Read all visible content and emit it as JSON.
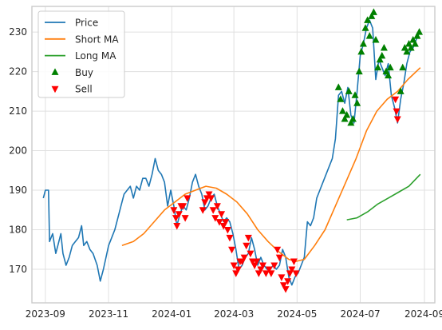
{
  "chart_data": {
    "type": "line",
    "x_ticks": [
      "2023-09",
      "2023-11",
      "2024-01",
      "2024-03",
      "2024-05",
      "2024-07",
      "2024-09"
    ],
    "y_ticks": [
      170,
      180,
      190,
      200,
      210,
      220,
      230
    ],
    "xlim": [
      "2023-08-19",
      "2024-09-11"
    ],
    "ylim": [
      161.5,
      236.5
    ],
    "grid": true,
    "legend": {
      "placement": "top-left"
    },
    "series": [
      {
        "name": "Price",
        "color": "#1f77b4",
        "points": [
          [
            "2023-08-30",
            188
          ],
          [
            "2023-09-01",
            190
          ],
          [
            "2023-09-04",
            190
          ],
          [
            "2023-09-05",
            177
          ],
          [
            "2023-09-08",
            179
          ],
          [
            "2023-09-11",
            174
          ],
          [
            "2023-09-13",
            176
          ],
          [
            "2023-09-16",
            179
          ],
          [
            "2023-09-18",
            174
          ],
          [
            "2023-09-21",
            171
          ],
          [
            "2023-09-24",
            173
          ],
          [
            "2023-09-27",
            176
          ],
          [
            "2023-09-30",
            177
          ],
          [
            "2023-10-03",
            178
          ],
          [
            "2023-10-06",
            181
          ],
          [
            "2023-10-08",
            176
          ],
          [
            "2023-10-11",
            177
          ],
          [
            "2023-10-14",
            175
          ],
          [
            "2023-10-17",
            174
          ],
          [
            "2023-10-21",
            171
          ],
          [
            "2023-10-24",
            167
          ],
          [
            "2023-10-27",
            170
          ],
          [
            "2023-11-01",
            176
          ],
          [
            "2023-11-04",
            178
          ],
          [
            "2023-11-07",
            180
          ],
          [
            "2023-11-10",
            183
          ],
          [
            "2023-11-13",
            186
          ],
          [
            "2023-11-16",
            189
          ],
          [
            "2023-11-19",
            190
          ],
          [
            "2023-11-22",
            191
          ],
          [
            "2023-11-25",
            188
          ],
          [
            "2023-11-28",
            191
          ],
          [
            "2023-12-01",
            190
          ],
          [
            "2023-12-04",
            193
          ],
          [
            "2023-12-07",
            193
          ],
          [
            "2023-12-10",
            191
          ],
          [
            "2023-12-13",
            194
          ],
          [
            "2023-12-16",
            198
          ],
          [
            "2023-12-19",
            195
          ],
          [
            "2023-12-22",
            194
          ],
          [
            "2023-12-25",
            192
          ],
          [
            "2023-12-28",
            186
          ],
          [
            "2023-12-31",
            190
          ],
          [
            "2024-01-03",
            186
          ],
          [
            "2024-01-06",
            181
          ],
          [
            "2024-01-09",
            184
          ],
          [
            "2024-01-12",
            186
          ],
          [
            "2024-01-15",
            185
          ],
          [
            "2024-01-18",
            188
          ],
          [
            "2024-01-21",
            192
          ],
          [
            "2024-01-24",
            194
          ],
          [
            "2024-01-27",
            191
          ],
          [
            "2024-01-30",
            189
          ],
          [
            "2024-02-02",
            185
          ],
          [
            "2024-02-05",
            186
          ],
          [
            "2024-02-08",
            188
          ],
          [
            "2024-02-11",
            189
          ],
          [
            "2024-02-14",
            186
          ],
          [
            "2024-02-17",
            184
          ],
          [
            "2024-02-20",
            182
          ],
          [
            "2024-02-23",
            183
          ],
          [
            "2024-02-26",
            182
          ],
          [
            "2024-02-29",
            179
          ],
          [
            "2024-03-03",
            175
          ],
          [
            "2024-03-06",
            170
          ],
          [
            "2024-03-09",
            171
          ],
          [
            "2024-03-12",
            173
          ],
          [
            "2024-03-15",
            174
          ],
          [
            "2024-03-18",
            178
          ],
          [
            "2024-03-21",
            175
          ],
          [
            "2024-03-24",
            171
          ],
          [
            "2024-03-27",
            173
          ],
          [
            "2024-03-30",
            171
          ],
          [
            "2024-04-02",
            170
          ],
          [
            "2024-04-05",
            170
          ],
          [
            "2024-04-08",
            171
          ],
          [
            "2024-04-11",
            170
          ],
          [
            "2024-04-14",
            171
          ],
          [
            "2024-04-17",
            175
          ],
          [
            "2024-04-20",
            173
          ],
          [
            "2024-04-23",
            168
          ],
          [
            "2024-04-26",
            166
          ],
          [
            "2024-04-29",
            168
          ],
          [
            "2024-05-02",
            169
          ],
          [
            "2024-05-05",
            171
          ],
          [
            "2024-05-08",
            173
          ],
          [
            "2024-05-11",
            182
          ],
          [
            "2024-05-14",
            181
          ],
          [
            "2024-05-17",
            183
          ],
          [
            "2024-05-20",
            188
          ],
          [
            "2024-05-23",
            190
          ],
          [
            "2024-05-26",
            192
          ],
          [
            "2024-05-29",
            194
          ],
          [
            "2024-06-01",
            196
          ],
          [
            "2024-06-04",
            198
          ],
          [
            "2024-06-07",
            203
          ],
          [
            "2024-06-10",
            214
          ],
          [
            "2024-06-13",
            215
          ],
          [
            "2024-06-16",
            212
          ],
          [
            "2024-06-19",
            216
          ],
          [
            "2024-06-22",
            209
          ],
          [
            "2024-06-25",
            207
          ],
          [
            "2024-06-28",
            215
          ],
          [
            "2024-07-01",
            224
          ],
          [
            "2024-07-04",
            227
          ],
          [
            "2024-07-07",
            231
          ],
          [
            "2024-07-10",
            233
          ],
          [
            "2024-07-13",
            231
          ],
          [
            "2024-07-16",
            218
          ],
          [
            "2024-07-19",
            223
          ],
          [
            "2024-07-22",
            221
          ],
          [
            "2024-07-25",
            219
          ],
          [
            "2024-07-28",
            222
          ],
          [
            "2024-07-31",
            214
          ],
          [
            "2024-08-03",
            211
          ],
          [
            "2024-08-06",
            207
          ],
          [
            "2024-08-09",
            213
          ],
          [
            "2024-08-12",
            217
          ],
          [
            "2024-08-15",
            222
          ],
          [
            "2024-08-18",
            225
          ],
          [
            "2024-08-21",
            226
          ],
          [
            "2024-08-24",
            228
          ],
          [
            "2024-08-27",
            230
          ]
        ]
      },
      {
        "name": "Short MA",
        "color": "#ff7f0e",
        "points": [
          [
            "2023-11-14",
            176
          ],
          [
            "2023-11-25",
            177
          ],
          [
            "2023-12-05",
            179
          ],
          [
            "2023-12-15",
            182
          ],
          [
            "2023-12-25",
            185
          ],
          [
            "2024-01-04",
            187
          ],
          [
            "2024-01-14",
            189
          ],
          [
            "2024-01-24",
            190
          ],
          [
            "2024-02-03",
            191
          ],
          [
            "2024-02-13",
            190.5
          ],
          [
            "2024-02-23",
            189
          ],
          [
            "2024-03-04",
            187
          ],
          [
            "2024-03-14",
            184
          ],
          [
            "2024-03-24",
            180
          ],
          [
            "2024-04-03",
            177
          ],
          [
            "2024-04-13",
            174.5
          ],
          [
            "2024-04-23",
            172.5
          ],
          [
            "2024-04-30",
            172
          ],
          [
            "2024-05-08",
            172.5
          ],
          [
            "2024-05-18",
            176
          ],
          [
            "2024-05-28",
            180
          ],
          [
            "2024-06-07",
            186
          ],
          [
            "2024-06-17",
            192
          ],
          [
            "2024-06-27",
            198
          ],
          [
            "2024-07-07",
            205
          ],
          [
            "2024-07-17",
            210
          ],
          [
            "2024-07-27",
            213
          ],
          [
            "2024-08-06",
            215
          ],
          [
            "2024-08-16",
            218
          ],
          [
            "2024-08-28",
            221
          ]
        ]
      },
      {
        "name": "Long MA",
        "color": "#2ca02c",
        "points": [
          [
            "2024-06-18",
            182.5
          ],
          [
            "2024-06-28",
            183
          ],
          [
            "2024-07-08",
            184.5
          ],
          [
            "2024-07-18",
            186.5
          ],
          [
            "2024-07-28",
            188
          ],
          [
            "2024-08-07",
            189.5
          ],
          [
            "2024-08-17",
            191
          ],
          [
            "2024-08-28",
            194
          ]
        ]
      }
    ],
    "markers": [
      {
        "name": "Buy",
        "color": "#008000",
        "shape": "triangle-up",
        "points": [
          [
            "2024-06-10",
            216
          ],
          [
            "2024-06-12",
            213
          ],
          [
            "2024-06-14",
            210
          ],
          [
            "2024-06-16",
            208
          ],
          [
            "2024-06-18",
            209
          ],
          [
            "2024-06-20",
            215
          ],
          [
            "2024-06-22",
            207
          ],
          [
            "2024-06-24",
            208
          ],
          [
            "2024-06-26",
            214
          ],
          [
            "2024-06-28",
            212
          ],
          [
            "2024-06-30",
            220
          ],
          [
            "2024-07-02",
            225
          ],
          [
            "2024-07-04",
            227
          ],
          [
            "2024-07-06",
            231
          ],
          [
            "2024-07-08",
            233
          ],
          [
            "2024-07-10",
            229
          ],
          [
            "2024-07-12",
            234
          ],
          [
            "2024-07-14",
            235
          ],
          [
            "2024-07-16",
            228
          ],
          [
            "2024-07-18",
            221
          ],
          [
            "2024-07-20",
            223
          ],
          [
            "2024-07-22",
            224
          ],
          [
            "2024-07-24",
            226
          ],
          [
            "2024-07-26",
            220
          ],
          [
            "2024-07-28",
            219
          ],
          [
            "2024-07-30",
            221
          ],
          [
            "2024-08-09",
            215
          ],
          [
            "2024-08-11",
            221
          ],
          [
            "2024-08-13",
            226
          ],
          [
            "2024-08-15",
            225
          ],
          [
            "2024-08-17",
            227
          ],
          [
            "2024-08-19",
            226
          ],
          [
            "2024-08-21",
            228
          ],
          [
            "2024-08-23",
            227
          ],
          [
            "2024-08-25",
            229
          ],
          [
            "2024-08-27",
            230
          ]
        ]
      },
      {
        "name": "Sell",
        "color": "#ff0000",
        "shape": "triangle-down",
        "points": [
          [
            "2024-01-03",
            185
          ],
          [
            "2024-01-05",
            183
          ],
          [
            "2024-01-06",
            181
          ],
          [
            "2024-01-08",
            184
          ],
          [
            "2024-01-10",
            186
          ],
          [
            "2024-01-12",
            186
          ],
          [
            "2024-01-14",
            183
          ],
          [
            "2024-01-16",
            188
          ],
          [
            "2024-01-31",
            185
          ],
          [
            "2024-02-02",
            187
          ],
          [
            "2024-02-04",
            188
          ],
          [
            "2024-02-06",
            189
          ],
          [
            "2024-02-08",
            188
          ],
          [
            "2024-02-10",
            185
          ],
          [
            "2024-02-12",
            183
          ],
          [
            "2024-02-14",
            186
          ],
          [
            "2024-02-16",
            182
          ],
          [
            "2024-02-18",
            184
          ],
          [
            "2024-02-20",
            181
          ],
          [
            "2024-02-22",
            182
          ],
          [
            "2024-02-24",
            180
          ],
          [
            "2024-02-26",
            178
          ],
          [
            "2024-02-28",
            175
          ],
          [
            "2024-03-01",
            171
          ],
          [
            "2024-03-03",
            169
          ],
          [
            "2024-03-05",
            170
          ],
          [
            "2024-03-07",
            172
          ],
          [
            "2024-03-09",
            172
          ],
          [
            "2024-03-11",
            173
          ],
          [
            "2024-03-13",
            176
          ],
          [
            "2024-03-15",
            178
          ],
          [
            "2024-03-17",
            174
          ],
          [
            "2024-03-19",
            172
          ],
          [
            "2024-03-21",
            171
          ],
          [
            "2024-03-23",
            172
          ],
          [
            "2024-03-25",
            169
          ],
          [
            "2024-03-27",
            170
          ],
          [
            "2024-03-29",
            171
          ],
          [
            "2024-04-01",
            169
          ],
          [
            "2024-04-04",
            170
          ],
          [
            "2024-04-06",
            169
          ],
          [
            "2024-04-09",
            171
          ],
          [
            "2024-04-12",
            175
          ],
          [
            "2024-04-14",
            173
          ],
          [
            "2024-04-16",
            168
          ],
          [
            "2024-04-18",
            166
          ],
          [
            "2024-04-20",
            165
          ],
          [
            "2024-04-22",
            167
          ],
          [
            "2024-04-24",
            169
          ],
          [
            "2024-04-26",
            170
          ],
          [
            "2024-04-28",
            172
          ],
          [
            "2024-04-30",
            169
          ],
          [
            "2024-08-04",
            213
          ],
          [
            "2024-08-05",
            210
          ],
          [
            "2024-08-06",
            208
          ]
        ]
      }
    ]
  }
}
